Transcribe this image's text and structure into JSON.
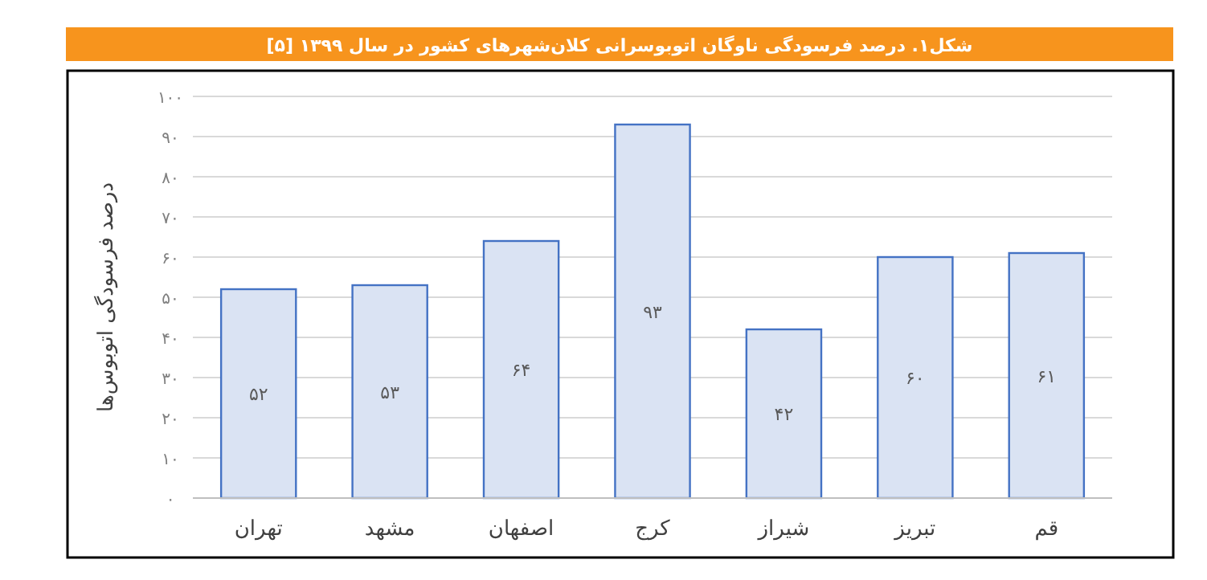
{
  "chart_data": {
    "type": "bar",
    "title": "شکل۱. درصد فرسودگی ناوگان اتوبوسرانی کلان‌شهرهای کشور در سال ۱۳۹۹ [۵]",
    "ylabel": "درصد فرسودگی اتوبوس‌ها",
    "categories": [
      "تهران",
      "مشهد",
      "اصفهان",
      "کرج",
      "شیراز",
      "تبریز",
      "قم"
    ],
    "values": [
      52,
      53,
      64,
      93,
      42,
      60,
      61
    ],
    "value_labels": [
      "۵۲",
      "۵۳",
      "۶۴",
      "۹۳",
      "۴۲",
      "۶۰",
      "۶۱"
    ],
    "color": "#dae3f3",
    "ylim": [
      0,
      100
    ],
    "yticks": [
      {
        "value": 0,
        "label": "۰"
      },
      {
        "value": 10,
        "label": "۱۰"
      },
      {
        "value": 20,
        "label": "۲۰"
      },
      {
        "value": 30,
        "label": "۳۰"
      },
      {
        "value": 40,
        "label": "۴۰"
      },
      {
        "value": 50,
        "label": "۵۰"
      },
      {
        "value": 60,
        "label": "۶۰"
      },
      {
        "value": 70,
        "label": "۷۰"
      },
      {
        "value": 80,
        "label": "۸۰"
      },
      {
        "value": 90,
        "label": "۹۰"
      },
      {
        "value": 100,
        "label": "۱۰۰"
      }
    ],
    "grid": "y"
  }
}
